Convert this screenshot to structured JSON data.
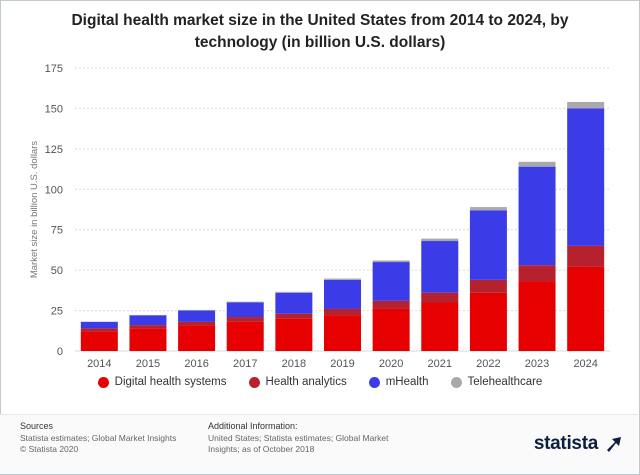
{
  "chart_data": {
    "type": "bar",
    "stacked": true,
    "title": "Digital health market size in the United States from 2014 to 2024, by technology (in billion U.S. dollars)",
    "title_lines": [
      "Digital health market size in the United States from 2014 to 2024, by",
      "technology (in billion U.S. dollars)"
    ],
    "xlabel": "",
    "ylabel": "Market size in billion U.S. dollars",
    "ylim": [
      0,
      175
    ],
    "yticks": [
      0,
      25,
      50,
      75,
      100,
      125,
      150,
      175
    ],
    "grid": true,
    "legend_position": "bottom",
    "categories": [
      "2014",
      "2015",
      "2016",
      "2017",
      "2018",
      "2019",
      "2020",
      "2021",
      "2022",
      "2023",
      "2024"
    ],
    "series": [
      {
        "name": "Digital health systems",
        "color": "#e60000",
        "values": [
          12,
          14,
          16,
          18,
          20,
          22,
          26,
          30,
          36,
          43,
          52
        ]
      },
      {
        "name": "Health analytics",
        "color": "#b5222e",
        "values": [
          2,
          2,
          2,
          3,
          3,
          4,
          5,
          6,
          8,
          10,
          13
        ]
      },
      {
        "name": "mHealth",
        "color": "#3b3be8",
        "values": [
          4,
          6,
          7,
          9,
          13,
          18,
          24,
          32,
          43,
          61,
          85
        ]
      },
      {
        "name": "Telehealthcare",
        "color": "#a9a9ad",
        "values": [
          0.2,
          0.3,
          0.4,
          0.5,
          0.6,
          0.8,
          1,
          1.5,
          2,
          3,
          4
        ]
      }
    ]
  },
  "footer": {
    "sources_heading": "Sources",
    "sources_line1": "Statista estimates; Global Market Insights",
    "sources_line2": "© Statista 2020",
    "additional_heading": "Additional Information:",
    "additional_text": "United States; Statista estimates; Global Market Insights; as of October 2018",
    "brand": "statista"
  }
}
